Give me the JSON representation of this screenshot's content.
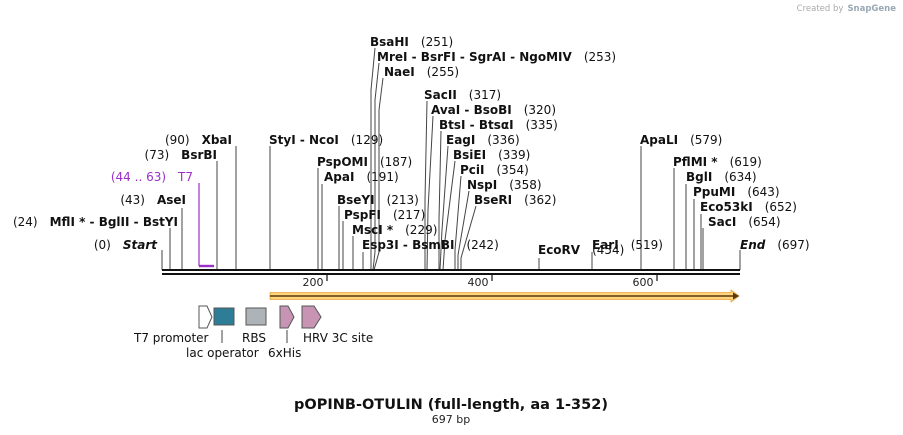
{
  "credit": {
    "prefix": "Created by",
    "app": "SnapGene"
  },
  "title": "pOPINB-OTULIN (full-length, aa 1-352)",
  "subtitle": "697 bp",
  "axis_ticks": [
    "200",
    "400",
    "600"
  ],
  "ends": {
    "start": {
      "pos": "(0)",
      "label": "Start"
    },
    "end": {
      "label": "End",
      "pos": "(697)"
    }
  },
  "primer": {
    "range": "(44 .. 63)",
    "name": "T7",
    "color": "#9b30c8"
  },
  "sites": [
    {
      "id": "bsahi",
      "label": "BsaHI",
      "pos": "(251)"
    },
    {
      "id": "mrei",
      "label": "MreI  - BsrFI  - SgrAI  - NgoMIV",
      "pos": "(253)"
    },
    {
      "id": "naei",
      "label": "NaeI",
      "pos": "(255)"
    },
    {
      "id": "sacii",
      "label": "SacII",
      "pos": "(317)"
    },
    {
      "id": "avai",
      "label": "AvaI  - BsoBI",
      "pos": "(320)"
    },
    {
      "id": "btsi",
      "label": "BtsI  - BtsαI",
      "pos": "(335)"
    },
    {
      "id": "eagi",
      "label": "EagI",
      "pos": "(336)"
    },
    {
      "id": "bsiei",
      "label": "BsiEI",
      "pos": "(339)"
    },
    {
      "id": "pcii",
      "label": "PciI",
      "pos": "(354)"
    },
    {
      "id": "nspi",
      "label": "NspI",
      "pos": "(358)"
    },
    {
      "id": "bseri",
      "label": "BseRI",
      "pos": "(362)"
    },
    {
      "id": "xbai",
      "label": "XbaI",
      "pos": "(90)"
    },
    {
      "id": "bsrbi",
      "label": "BsrBI",
      "pos": "(73)"
    },
    {
      "id": "asei",
      "label": "AseI",
      "pos": "(43)"
    },
    {
      "id": "mlui",
      "label": "MflI *  - BglII  - BstYI",
      "pos": "(24)"
    },
    {
      "id": "styi",
      "label": "StyI  - NcoI",
      "pos": "(129)"
    },
    {
      "id": "pspomi",
      "label": "PspOMI",
      "pos": "(187)"
    },
    {
      "id": "apai",
      "label": "ApaI",
      "pos": "(191)"
    },
    {
      "id": "bseyi",
      "label": "BseYI",
      "pos": "(213)"
    },
    {
      "id": "pspfi",
      "label": "PspFI",
      "pos": "(217)"
    },
    {
      "id": "msci",
      "label": "MscI *",
      "pos": "(229)"
    },
    {
      "id": "esp3i",
      "label": "Esp3I  - BsmBI",
      "pos": "(242)"
    },
    {
      "id": "ecorv",
      "label": "EcoRV",
      "pos": "(454)"
    },
    {
      "id": "eari",
      "label": "EarI",
      "pos": "(519)"
    },
    {
      "id": "apali",
      "label": "ApaLI",
      "pos": "(579)"
    },
    {
      "id": "pflmi",
      "label": "PflMI *",
      "pos": "(619)"
    },
    {
      "id": "bgli",
      "label": "BglI",
      "pos": "(634)"
    },
    {
      "id": "ppumi",
      "label": "PpuMI",
      "pos": "(643)"
    },
    {
      "id": "eco53ki",
      "label": "Eco53kI",
      "pos": "(652)"
    },
    {
      "id": "saci",
      "label": "SacI",
      "pos": "(654)"
    }
  ],
  "features": [
    {
      "name": "T7 promoter",
      "color": "#ffffff"
    },
    {
      "name": "lac operator",
      "color": "#2e7d96"
    },
    {
      "name": "RBS",
      "color": "#aeb3b8"
    },
    {
      "name": "6xHis",
      "color": "#c795b3"
    },
    {
      "name": "HRV 3C site",
      "color": "#c795b3"
    }
  ],
  "orf": {
    "fill": "#ffd47a",
    "stroke": "#e6a23c"
  }
}
